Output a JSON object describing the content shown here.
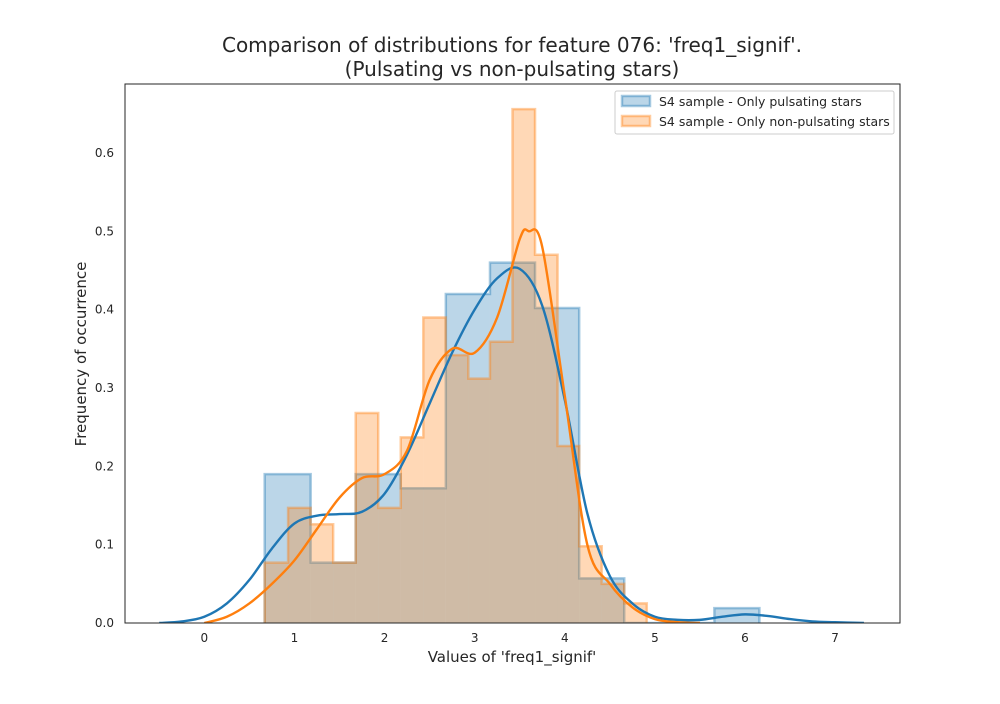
{
  "chart_data": {
    "type": "histogram",
    "title": [
      "Comparison of distributions for feature 076: 'freq1_signif'.",
      "(Pulsating vs non-pulsating stars)"
    ],
    "xlabel": "Values of 'freq1_signif'",
    "ylabel": "Frequency of occurrence",
    "xlim": [
      -0.88,
      7.72
    ],
    "ylim": [
      0,
      0.688
    ],
    "xticks": [
      0,
      1,
      2,
      3,
      4,
      5,
      6,
      7
    ],
    "yticks": [
      0.0,
      0.1,
      0.2,
      0.3,
      0.4,
      0.5,
      0.6
    ],
    "grid": false,
    "legend_position": "top-right",
    "series": [
      {
        "name": "S4 sample - Only pulsating stars",
        "color": "#1f77b4",
        "bins": [
          {
            "x0": 0.67,
            "x1": 1.18,
            "value": 0.19
          },
          {
            "x0": 1.18,
            "x1": 1.68,
            "value": 0.077
          },
          {
            "x0": 1.68,
            "x1": 2.18,
            "value": 0.19
          },
          {
            "x0": 2.18,
            "x1": 2.68,
            "value": 0.172
          },
          {
            "x0": 2.68,
            "x1": 3.17,
            "value": 0.42
          },
          {
            "x0": 3.17,
            "x1": 3.67,
            "value": 0.46
          },
          {
            "x0": 3.67,
            "x1": 4.16,
            "value": 0.402
          },
          {
            "x0": 4.16,
            "x1": 4.66,
            "value": 0.057
          },
          {
            "x0": 4.66,
            "x1": 5.16,
            "value": 0
          },
          {
            "x0": 5.16,
            "x1": 5.66,
            "value": 0
          },
          {
            "x0": 5.66,
            "x1": 6.16,
            "value": 0.019
          }
        ],
        "kde": {
          "x": [
            -0.5,
            -0.25,
            0,
            0.25,
            0.5,
            0.75,
            1.0,
            1.25,
            1.5,
            1.75,
            2.0,
            2.25,
            2.5,
            2.75,
            3.0,
            3.25,
            3.5,
            3.75,
            4.0,
            4.25,
            4.5,
            4.75,
            5.0,
            5.25,
            5.5,
            5.75,
            6.0,
            6.25,
            6.5,
            6.75,
            7.0,
            7.32
          ],
          "y": [
            0.0,
            0.002,
            0.008,
            0.025,
            0.055,
            0.095,
            0.127,
            0.137,
            0.139,
            0.142,
            0.165,
            0.215,
            0.28,
            0.345,
            0.4,
            0.44,
            0.452,
            0.405,
            0.285,
            0.14,
            0.06,
            0.025,
            0.008,
            0.004,
            0.004,
            0.008,
            0.011,
            0.009,
            0.005,
            0.002,
            0.001,
            0.0
          ]
        }
      },
      {
        "name": "S4 sample - Only non-pulsating stars",
        "color": "#ff7f0e",
        "bins": [
          {
            "x0": 0.67,
            "x1": 0.93,
            "value": 0.077
          },
          {
            "x0": 0.93,
            "x1": 1.18,
            "value": 0.147
          },
          {
            "x0": 1.18,
            "x1": 1.43,
            "value": 0.126
          },
          {
            "x0": 1.43,
            "x1": 1.68,
            "value": 0.077
          },
          {
            "x0": 1.68,
            "x1": 1.93,
            "value": 0.268
          },
          {
            "x0": 1.93,
            "x1": 2.18,
            "value": 0.147
          },
          {
            "x0": 2.18,
            "x1": 2.43,
            "value": 0.237
          },
          {
            "x0": 2.43,
            "x1": 2.68,
            "value": 0.39
          },
          {
            "x0": 2.68,
            "x1": 2.93,
            "value": 0.342
          },
          {
            "x0": 2.93,
            "x1": 3.17,
            "value": 0.312
          },
          {
            "x0": 3.17,
            "x1": 3.42,
            "value": 0.359
          },
          {
            "x0": 3.42,
            "x1": 3.67,
            "value": 0.656
          },
          {
            "x0": 3.67,
            "x1": 3.92,
            "value": 0.47
          },
          {
            "x0": 3.92,
            "x1": 4.16,
            "value": 0.226
          },
          {
            "x0": 4.16,
            "x1": 4.41,
            "value": 0.098
          },
          {
            "x0": 4.41,
            "x1": 4.66,
            "value": 0.05
          },
          {
            "x0": 4.66,
            "x1": 4.91,
            "value": 0.025
          }
        ],
        "kde": {
          "x": [
            0.0,
            0.25,
            0.5,
            0.75,
            1.0,
            1.25,
            1.5,
            1.75,
            2.0,
            2.25,
            2.5,
            2.75,
            3.0,
            3.25,
            3.5,
            3.6,
            3.75,
            4.0,
            4.25,
            4.5,
            4.75,
            5.0,
            5.25,
            5.5
          ],
          "y": [
            0.0,
            0.008,
            0.025,
            0.05,
            0.08,
            0.12,
            0.16,
            0.185,
            0.19,
            0.22,
            0.31,
            0.35,
            0.345,
            0.39,
            0.49,
            0.5,
            0.48,
            0.29,
            0.1,
            0.05,
            0.02,
            0.005,
            0.001,
            0.0
          ]
        }
      }
    ]
  }
}
